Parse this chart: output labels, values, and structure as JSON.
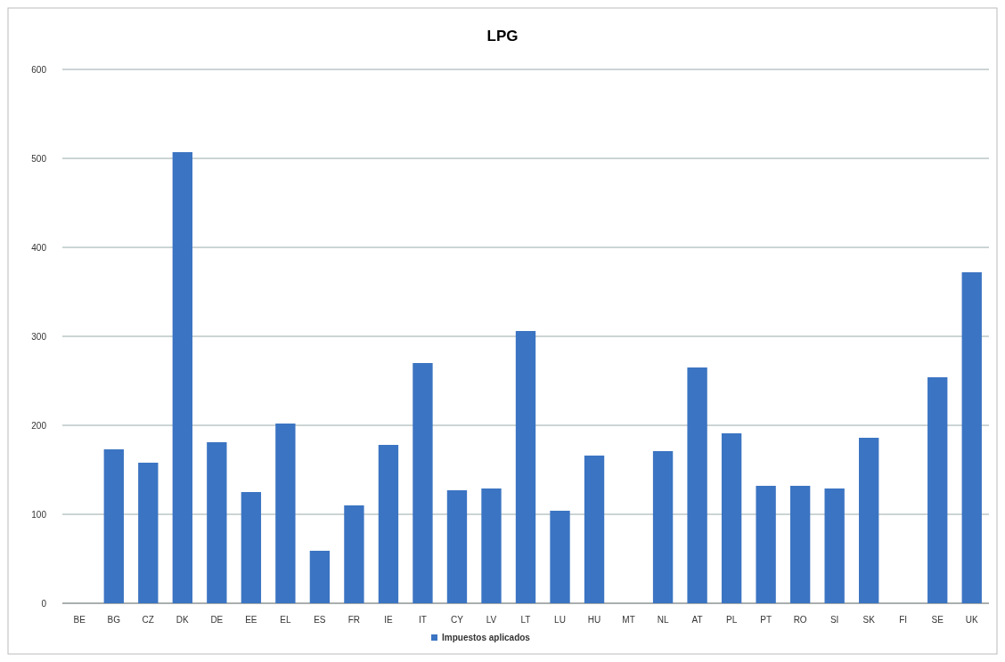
{
  "chart_data": {
    "type": "bar",
    "title": "LPG",
    "categories": [
      "BE",
      "BG",
      "CZ",
      "DK",
      "DE",
      "EE",
      "EL",
      "ES",
      "FR",
      "IE",
      "IT",
      "CY",
      "LV",
      "LT",
      "LU",
      "HU",
      "MT",
      "NL",
      "AT",
      "PL",
      "PT",
      "RO",
      "SI",
      "SK",
      "FI",
      "SE",
      "UK"
    ],
    "series": [
      {
        "name": "Impuestos aplicados",
        "color": "#3b74c2",
        "values": [
          null,
          173,
          158,
          507,
          181,
          125,
          202,
          59,
          110,
          178,
          270,
          127,
          129,
          306,
          104,
          166,
          null,
          171,
          265,
          191,
          132,
          132,
          129,
          186,
          null,
          254,
          372
        ]
      }
    ],
    "ylim": [
      0,
      600
    ],
    "yticks": [
      0,
      100,
      200,
      300,
      400,
      500,
      600
    ],
    "grid": "y",
    "legend": "bottom"
  }
}
